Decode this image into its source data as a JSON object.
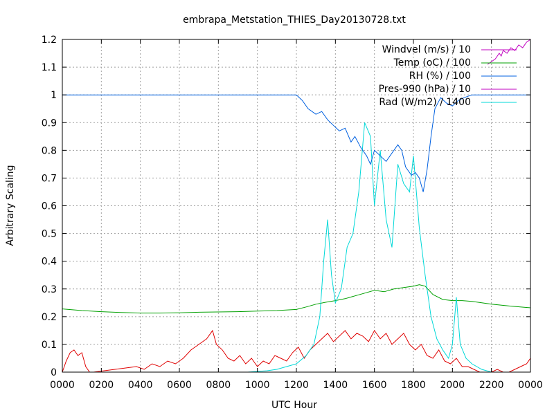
{
  "chart_data": {
    "type": "line",
    "title": "embrapa_Metstation_THIES_Day20130728.txt",
    "xlabel": "UTC Hour",
    "ylabel": "Arbitrary Scaling",
    "xlim": [
      0,
      24
    ],
    "ylim": [
      0,
      1.2
    ],
    "grid": true,
    "legend_position": "top-right",
    "x_tick_labels": [
      "0000",
      "0200",
      "0400",
      "0600",
      "0800",
      "1000",
      "1200",
      "1400",
      "1600",
      "1800",
      "2000",
      "2200",
      "0000"
    ],
    "y_tick_labels": [
      "0",
      "0.1",
      "0.2",
      "0.3",
      "0.4",
      "0.5",
      "0.6",
      "0.7",
      "0.8",
      "0.9",
      "1",
      "1.1",
      "1.2"
    ],
    "series": [
      {
        "name": "Windvel (m/s) / 10",
        "color": "#c000c0",
        "x": [
          21.8,
          22.0,
          22.2,
          22.4,
          22.5,
          22.6,
          22.8,
          23.0,
          23.2,
          23.4,
          23.6,
          23.8,
          24.0
        ],
        "y": [
          1.11,
          1.12,
          1.13,
          1.15,
          1.14,
          1.16,
          1.15,
          1.17,
          1.16,
          1.18,
          1.17,
          1.19,
          1.2
        ]
      },
      {
        "name": "Temp (oC) / 100",
        "color": "#00a000",
        "x": [
          0,
          1,
          2,
          3,
          4,
          5,
          6,
          7,
          8,
          9,
          10,
          11,
          12,
          12.5,
          13,
          13.5,
          14,
          14.5,
          15,
          15.5,
          16,
          16.5,
          17,
          17.5,
          18,
          18.3,
          18.6,
          19,
          19.5,
          20,
          20.5,
          21,
          22,
          23,
          24
        ],
        "y": [
          0.228,
          0.222,
          0.218,
          0.215,
          0.213,
          0.213,
          0.214,
          0.216,
          0.217,
          0.218,
          0.22,
          0.222,
          0.226,
          0.235,
          0.245,
          0.252,
          0.258,
          0.265,
          0.275,
          0.285,
          0.295,
          0.29,
          0.3,
          0.305,
          0.31,
          0.315,
          0.31,
          0.28,
          0.262,
          0.258,
          0.258,
          0.255,
          0.245,
          0.238,
          0.232
        ]
      },
      {
        "name": "RH (%) / 100",
        "color": "#0060e0",
        "x": [
          0,
          12.0,
          12.3,
          12.6,
          13.0,
          13.3,
          13.6,
          13.9,
          14.2,
          14.5,
          14.8,
          15.0,
          15.3,
          15.6,
          15.8,
          16.0,
          16.3,
          16.6,
          16.9,
          17.2,
          17.4,
          17.6,
          17.9,
          18.1,
          18.3,
          18.5,
          18.7,
          18.9,
          19.1,
          19.4,
          19.7,
          20.0,
          20.3,
          20.6,
          21.0,
          21.5,
          24.0
        ],
        "y": [
          1.0,
          1.0,
          0.98,
          0.95,
          0.93,
          0.94,
          0.91,
          0.89,
          0.87,
          0.88,
          0.83,
          0.85,
          0.81,
          0.78,
          0.75,
          0.8,
          0.78,
          0.76,
          0.79,
          0.82,
          0.8,
          0.74,
          0.71,
          0.72,
          0.7,
          0.65,
          0.73,
          0.85,
          0.95,
          0.99,
          0.97,
          0.96,
          0.98,
          0.99,
          1.0,
          1.0,
          1.0
        ]
      },
      {
        "name": "Pres-990 (hPa) / 10",
        "color": "#c000c0",
        "x": [],
        "y": []
      },
      {
        "name": "Rad (W/m2) / 1400",
        "color": "#00d8d8",
        "x": [
          0,
          9.5,
          10.5,
          11.0,
          11.5,
          12.0,
          12.5,
          12.9,
          13.2,
          13.4,
          13.6,
          13.8,
          14.0,
          14.3,
          14.6,
          14.9,
          15.2,
          15.5,
          15.8,
          16.0,
          16.3,
          16.6,
          16.9,
          17.2,
          17.5,
          17.8,
          18.0,
          18.3,
          18.6,
          18.9,
          19.2,
          19.5,
          19.8,
          20.0,
          20.2,
          20.4,
          20.7,
          21.0,
          21.5,
          22.0,
          24.0
        ],
        "y": [
          0.0,
          0.0,
          0.005,
          0.01,
          0.02,
          0.03,
          0.06,
          0.1,
          0.2,
          0.4,
          0.55,
          0.35,
          0.25,
          0.3,
          0.45,
          0.5,
          0.65,
          0.9,
          0.85,
          0.6,
          0.8,
          0.55,
          0.45,
          0.75,
          0.68,
          0.65,
          0.78,
          0.52,
          0.35,
          0.2,
          0.12,
          0.08,
          0.05,
          0.1,
          0.27,
          0.1,
          0.05,
          0.03,
          0.01,
          0.0,
          0.0
        ]
      },
      {
        "name": "",
        "color": "#e00000",
        "x": [
          0,
          0.2,
          0.4,
          0.6,
          0.8,
          1.0,
          1.2,
          1.4,
          1.6,
          3.8,
          4.2,
          4.6,
          5.0,
          5.4,
          5.8,
          6.2,
          6.6,
          7.0,
          7.4,
          7.7,
          7.9,
          8.2,
          8.5,
          8.8,
          9.1,
          9.4,
          9.7,
          10.0,
          10.3,
          10.6,
          10.9,
          11.2,
          11.5,
          11.8,
          12.1,
          12.4,
          12.7,
          13.0,
          13.3,
          13.6,
          13.9,
          14.2,
          14.5,
          14.8,
          15.1,
          15.4,
          15.7,
          16.0,
          16.3,
          16.6,
          16.9,
          17.2,
          17.5,
          17.8,
          18.1,
          18.4,
          18.7,
          19.0,
          19.3,
          19.6,
          19.9,
          20.2,
          20.5,
          20.8,
          21.1,
          21.4,
          21.7,
          22.0,
          22.3,
          22.6,
          22.9,
          23.2,
          23.5,
          23.8,
          24.0
        ],
        "y": [
          0.0,
          0.04,
          0.07,
          0.08,
          0.06,
          0.07,
          0.02,
          0.0,
          0.0,
          0.02,
          0.01,
          0.03,
          0.02,
          0.04,
          0.03,
          0.05,
          0.08,
          0.1,
          0.12,
          0.15,
          0.1,
          0.08,
          0.05,
          0.04,
          0.06,
          0.03,
          0.05,
          0.02,
          0.04,
          0.03,
          0.06,
          0.05,
          0.04,
          0.07,
          0.09,
          0.05,
          0.08,
          0.1,
          0.12,
          0.14,
          0.11,
          0.13,
          0.15,
          0.12,
          0.14,
          0.13,
          0.11,
          0.15,
          0.12,
          0.14,
          0.1,
          0.12,
          0.14,
          0.1,
          0.08,
          0.1,
          0.06,
          0.05,
          0.08,
          0.04,
          0.03,
          0.05,
          0.02,
          0.02,
          0.01,
          0.0,
          0.0,
          0.0,
          0.01,
          0.0,
          0.0,
          0.01,
          0.02,
          0.03,
          0.05
        ]
      }
    ]
  }
}
